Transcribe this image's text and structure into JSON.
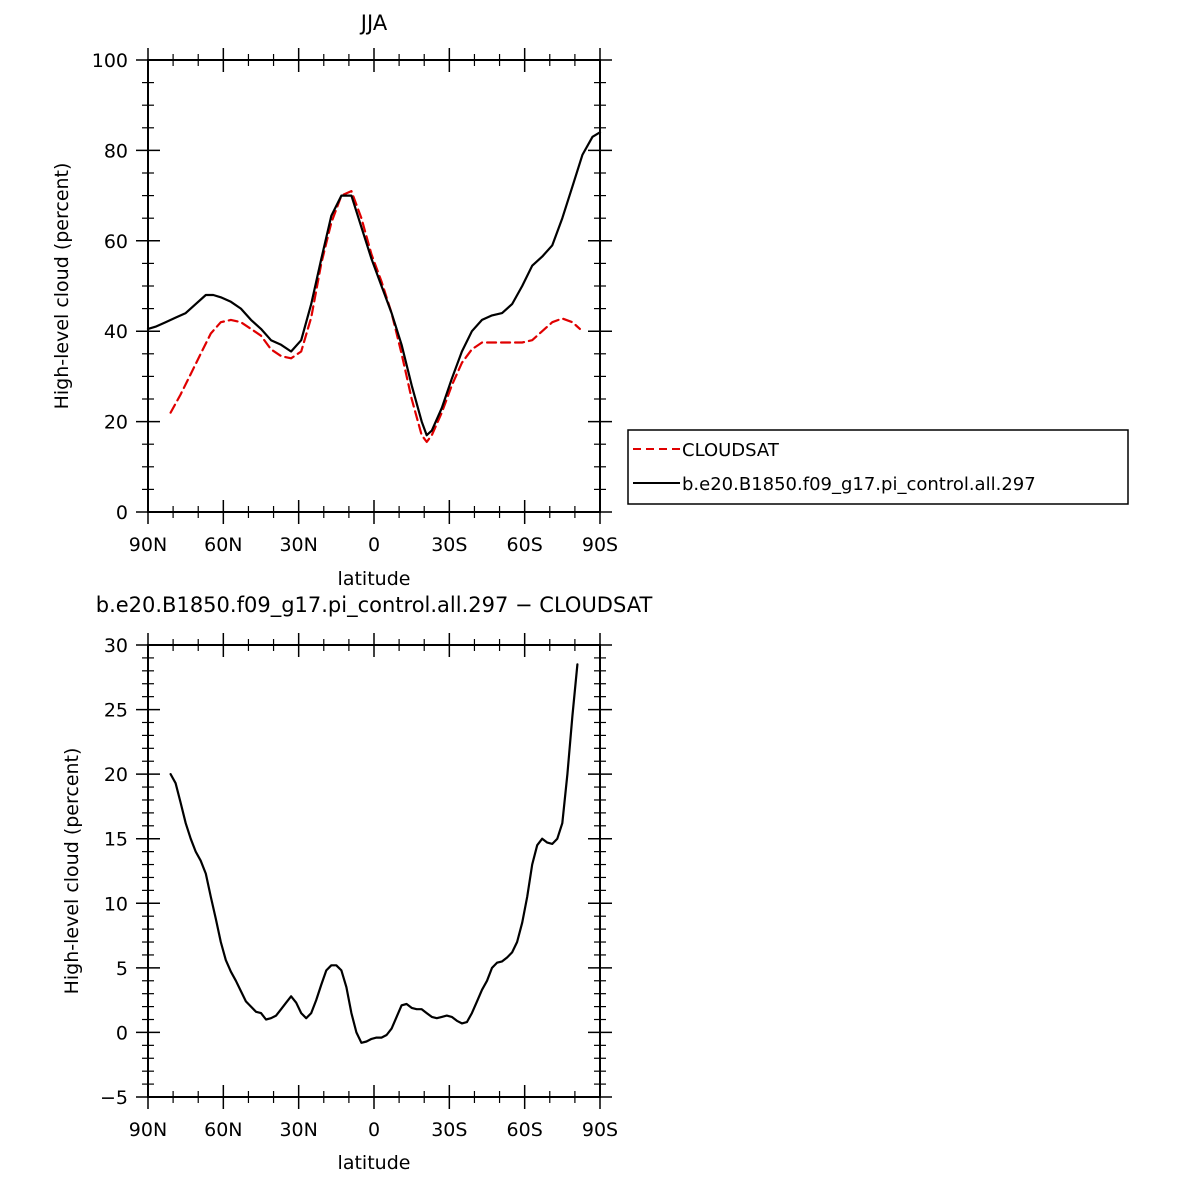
{
  "chart_data": [
    {
      "type": "line",
      "title": "JJA",
      "xlabel": "latitude",
      "ylabel": "High-level cloud (percent)",
      "xlim": [
        -90,
        90
      ],
      "ylim": [
        0,
        100
      ],
      "x_ticks": [
        -90,
        -60,
        -30,
        0,
        30,
        60,
        90
      ],
      "x_tick_labels": [
        "90N",
        "60N",
        "30N",
        "0",
        "30S",
        "60S",
        "90S"
      ],
      "y_ticks": [
        0,
        20,
        40,
        60,
        80,
        100
      ],
      "y_tick_labels": [
        "0",
        "20",
        "40",
        "60",
        "80",
        "100"
      ],
      "grid": false,
      "legend_position": "right",
      "series": [
        {
          "name": "CLOUDSAT",
          "color": "#e00000",
          "dash": "dashed",
          "x": [
            -81,
            -77,
            -73,
            -69,
            -65,
            -61,
            -57,
            -53,
            -49,
            -45,
            -41,
            -37,
            -33,
            -29,
            -25,
            -21,
            -17,
            -13,
            -9,
            -5,
            -1,
            3,
            7,
            11,
            15,
            19,
            21,
            23,
            27,
            31,
            35,
            39,
            43,
            47,
            51,
            55,
            59,
            63,
            67,
            71,
            75,
            79,
            82
          ],
          "y": [
            22,
            26,
            30.5,
            35,
            39.5,
            42,
            42.5,
            42,
            40.5,
            39,
            36,
            34.5,
            34,
            35.5,
            43,
            55,
            64,
            70,
            71,
            65,
            57,
            51,
            44,
            35,
            25,
            17,
            15.5,
            17,
            22,
            28,
            33,
            36,
            37.5,
            37.5,
            37.5,
            37.5,
            37.5,
            38,
            40,
            42,
            42.8,
            42,
            40.5
          ]
        },
        {
          "name": "b.e20.B1850.f09_g17.pi_control.all.297",
          "color": "#000000",
          "dash": "solid",
          "x": [
            -90,
            -87,
            -83,
            -79,
            -75,
            -71,
            -67,
            -64,
            -61,
            -57,
            -53,
            -49,
            -45,
            -41,
            -37,
            -33,
            -29,
            -25,
            -21,
            -17,
            -13,
            -9,
            -5,
            -1,
            3,
            7,
            11,
            15,
            19,
            21,
            23,
            27,
            31,
            35,
            39,
            43,
            47,
            51,
            55,
            59,
            63,
            67,
            71,
            75,
            79,
            83,
            87,
            90
          ],
          "y": [
            40.5,
            41,
            42,
            43,
            44,
            46,
            48,
            48,
            47.5,
            46.5,
            45,
            42.5,
            40.5,
            38,
            37,
            35.5,
            38,
            46,
            56,
            65.5,
            70,
            70,
            63,
            56,
            50,
            44,
            37,
            28,
            20,
            17,
            18,
            23,
            29.5,
            35.5,
            40,
            42.5,
            43.5,
            44,
            46,
            50,
            54.5,
            56.5,
            59,
            65,
            72,
            79,
            83,
            84
          ]
        }
      ]
    },
    {
      "type": "line",
      "title": "b.e20.B1850.f09_g17.pi_control.all.297 − CLOUDSAT",
      "xlabel": "latitude",
      "ylabel": "High-level cloud (percent)",
      "xlim": [
        -90,
        90
      ],
      "ylim": [
        -5,
        30
      ],
      "x_ticks": [
        -90,
        -60,
        -30,
        0,
        30,
        60,
        90
      ],
      "x_tick_labels": [
        "90N",
        "60N",
        "30N",
        "0",
        "30S",
        "60S",
        "90S"
      ],
      "y_ticks": [
        -5,
        0,
        5,
        10,
        15,
        20,
        25,
        30
      ],
      "y_tick_labels": [
        "−5",
        "0",
        "5",
        "10",
        "15",
        "20",
        "25",
        "30"
      ],
      "grid": false,
      "series": [
        {
          "color": "#000000",
          "dash": "solid",
          "x": [
            -81,
            -79,
            -77,
            -75,
            -73,
            -71,
            -69,
            -67,
            -65,
            -63,
            -61,
            -59,
            -57,
            -55,
            -53,
            -51,
            -49,
            -47,
            -45,
            -43,
            -41,
            -39,
            -37,
            -35,
            -33,
            -31,
            -29,
            -27,
            -25,
            -23,
            -21,
            -19,
            -17,
            -15,
            -13,
            -11,
            -9,
            -7,
            -5,
            -3,
            -1,
            1,
            3,
            5,
            7,
            9,
            11,
            13,
            15,
            17,
            19,
            21,
            23,
            25,
            27,
            29,
            31,
            33,
            35,
            37,
            39,
            41,
            43,
            45,
            47,
            49,
            51,
            53,
            55,
            57,
            59,
            61,
            63,
            65,
            67,
            69,
            71,
            73,
            75,
            77,
            79,
            81
          ],
          "y": [
            20,
            19.3,
            17.8,
            16.2,
            15,
            14,
            13.3,
            12.3,
            10.5,
            8.8,
            7,
            5.6,
            4.7,
            4,
            3.2,
            2.4,
            2,
            1.6,
            1.5,
            1,
            1.1,
            1.3,
            1.8,
            2.3,
            2.8,
            2.3,
            1.5,
            1.1,
            1.5,
            2.5,
            3.7,
            4.8,
            5.2,
            5.2,
            4.8,
            3.5,
            1.5,
            0,
            -0.8,
            -0.7,
            -0.5,
            -0.4,
            -0.4,
            -0.2,
            0.3,
            1.2,
            2.1,
            2.2,
            1.9,
            1.8,
            1.8,
            1.5,
            1.2,
            1.1,
            1.2,
            1.3,
            1.2,
            0.9,
            0.7,
            0.8,
            1.5,
            2.4,
            3.3,
            4,
            5,
            5.4,
            5.5,
            5.8,
            6.2,
            7,
            8.5,
            10.5,
            13,
            14.5,
            15,
            14.7,
            14.6,
            15,
            16.2,
            20,
            24.5,
            28.5
          ]
        }
      ]
    }
  ]
}
